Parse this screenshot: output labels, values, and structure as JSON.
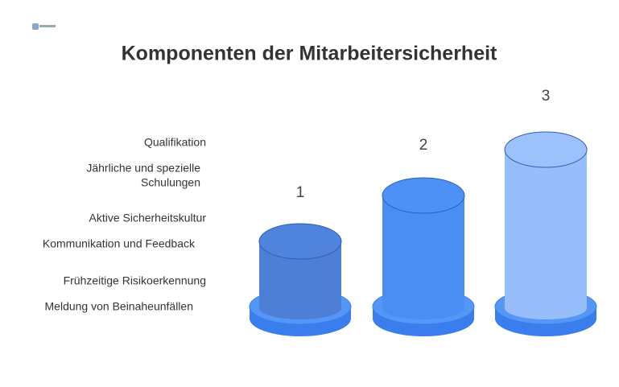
{
  "header": {
    "title": "Komponenten der Mitarbeitersicherheit"
  },
  "labels": [
    {
      "lines": [
        "Qualifikation"
      ]
    },
    {
      "lines": [
        "Jährliche und spezielle",
        "Schulungen"
      ]
    },
    {
      "lines": [
        "Aktive Sicherheitskultur"
      ]
    },
    {
      "lines": [
        "Kommunikation und Feedback"
      ]
    },
    {
      "lines": [
        "Frühzeitige Risikoerkennung"
      ]
    },
    {
      "lines": [
        "Meldung von Beinaheunfällen"
      ]
    }
  ],
  "columns": [
    {
      "label": "1"
    },
    {
      "label": "2"
    },
    {
      "label": "3"
    }
  ]
}
